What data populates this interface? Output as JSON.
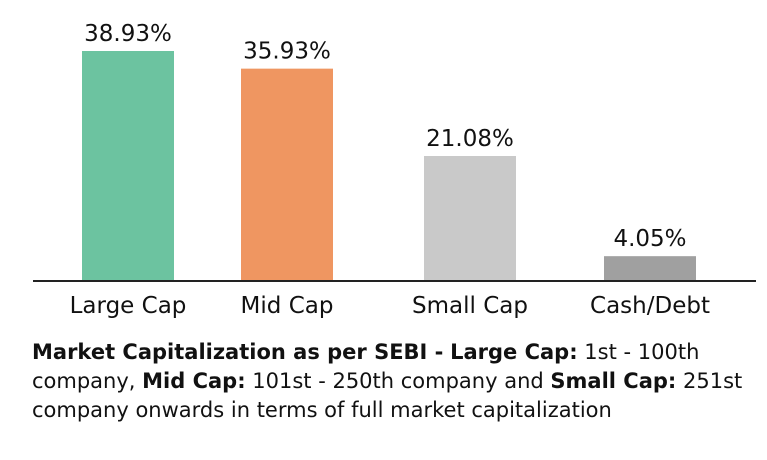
{
  "chart_data": {
    "type": "bar",
    "categories": [
      "Large Cap",
      "Mid Cap",
      "Small Cap",
      "Cash/Debt"
    ],
    "values": [
      38.93,
      35.93,
      21.08,
      4.05
    ],
    "value_labels": [
      "38.93%",
      "35.93%",
      "21.08%",
      "4.05%"
    ],
    "colors": [
      "#6cc3a0",
      "#ef9661",
      "#c9c9c9",
      "#a0a0a0"
    ],
    "ylim": [
      0,
      38.93
    ],
    "grid": false,
    "legend": "none"
  },
  "note": {
    "heading": "Market Capitalization as per SEBI -",
    "large_term": "Large Cap:",
    "large_text": " 1st - 100th company, ",
    "mid_term": "Mid Cap:",
    "mid_text": " 101st - 250th company and ",
    "small_term": "Small Cap:",
    "small_text": " 251st company onwards in terms of full market capitalization"
  }
}
